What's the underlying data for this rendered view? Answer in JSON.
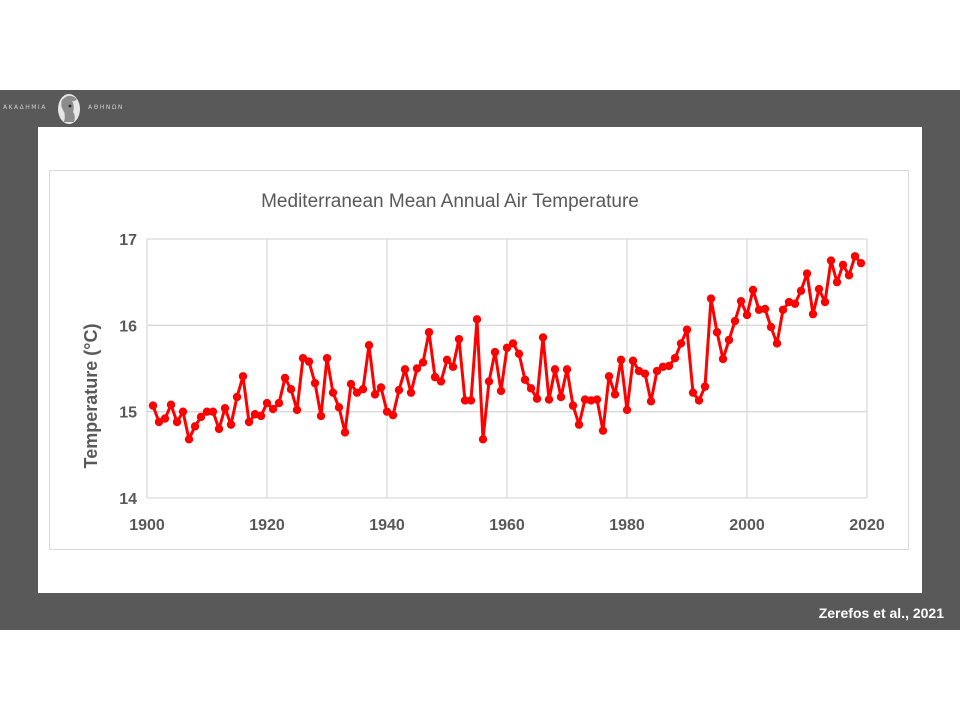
{
  "logo": {
    "left_text": "ΑΚΑΔΗΜΙΑ",
    "right_text": "ΑΘΗΝΩΝ",
    "icon": "athena-head-icon"
  },
  "credit": "Zerefos et al., 2021",
  "chart_data": {
    "type": "line",
    "title": "Mediterranean Mean Annual Air Temperature",
    "xlabel": "",
    "ylabel": "Temperature (°C)",
    "xlim": [
      1900,
      2020
    ],
    "ylim": [
      14,
      17
    ],
    "xticks": [
      1900,
      1920,
      1940,
      1960,
      1980,
      2000,
      2020
    ],
    "yticks": [
      14,
      15,
      16,
      17
    ],
    "grid": true,
    "legend": "none",
    "series": [
      {
        "color": "#ff0000",
        "x": [
          1901,
          1902,
          1903,
          1904,
          1905,
          1906,
          1907,
          1908,
          1909,
          1910,
          1911,
          1912,
          1913,
          1914,
          1915,
          1916,
          1917,
          1918,
          1919,
          1920,
          1921,
          1922,
          1923,
          1924,
          1925,
          1926,
          1927,
          1928,
          1929,
          1930,
          1931,
          1932,
          1933,
          1934,
          1935,
          1936,
          1937,
          1938,
          1939,
          1940,
          1941,
          1942,
          1943,
          1944,
          1945,
          1946,
          1947,
          1948,
          1949,
          1950,
          1951,
          1952,
          1953,
          1954,
          1955,
          1956,
          1957,
          1958,
          1959,
          1960,
          1961,
          1962,
          1963,
          1964,
          1965,
          1966,
          1967,
          1968,
          1969,
          1970,
          1971,
          1972,
          1973,
          1974,
          1975,
          1976,
          1977,
          1978,
          1979,
          1980,
          1981,
          1982,
          1983,
          1984,
          1985,
          1986,
          1987,
          1988,
          1989,
          1990,
          1991,
          1992,
          1993,
          1994,
          1995,
          1996,
          1997,
          1998,
          1999,
          2000,
          2001,
          2002,
          2003,
          2004,
          2005,
          2006,
          2007,
          2008,
          2009,
          2010,
          2011,
          2012,
          2013,
          2014,
          2015,
          2016,
          2017,
          2018,
          2019
        ],
        "y": [
          15.07,
          14.88,
          14.92,
          15.08,
          14.88,
          15.0,
          14.68,
          14.83,
          14.94,
          15.0,
          15.0,
          14.8,
          15.04,
          14.85,
          15.17,
          15.41,
          14.88,
          14.97,
          14.95,
          15.1,
          15.03,
          15.1,
          15.39,
          15.26,
          15.02,
          15.62,
          15.58,
          15.33,
          14.95,
          15.62,
          15.22,
          15.05,
          14.76,
          15.32,
          15.22,
          15.26,
          15.77,
          15.2,
          15.28,
          15.0,
          14.96,
          15.25,
          15.49,
          15.22,
          15.5,
          15.57,
          15.92,
          15.4,
          15.35,
          15.6,
          15.52,
          15.84,
          15.13,
          15.13,
          16.07,
          14.68,
          15.35,
          15.69,
          15.24,
          15.74,
          15.79,
          15.67,
          15.37,
          15.27,
          15.15,
          15.86,
          15.14,
          15.49,
          15.17,
          15.49,
          15.07,
          14.85,
          15.14,
          15.13,
          15.14,
          14.78,
          15.41,
          15.2,
          15.6,
          15.02,
          15.59,
          15.47,
          15.44,
          15.12,
          15.47,
          15.52,
          15.53,
          15.62,
          15.79,
          15.95,
          15.22,
          15.13,
          15.29,
          16.31,
          15.92,
          15.61,
          15.83,
          16.05,
          16.28,
          16.12,
          16.41,
          16.18,
          16.19,
          15.98,
          15.79,
          16.18,
          16.27,
          16.25,
          16.4,
          16.6,
          16.13,
          16.42,
          16.27,
          16.75,
          16.5,
          16.7,
          16.58,
          16.8,
          16.72
        ]
      }
    ]
  }
}
